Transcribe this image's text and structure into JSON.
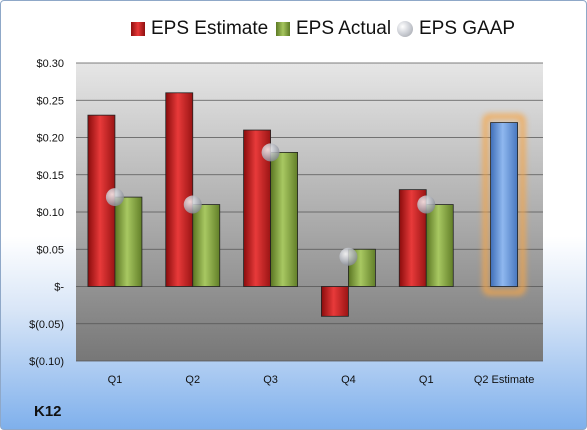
{
  "legend": {
    "estimate_label": "EPS Estimate",
    "actual_label": "EPS Actual",
    "gaap_label": "EPS GAAP"
  },
  "ticker": "K12",
  "colors": {
    "estimate": "#d42424",
    "actual": "#8db04a",
    "gaap": "#b8bcc4",
    "q2_estimate": "#6a9be0",
    "q2_glow": "#f5a64a"
  },
  "chart_data": {
    "type": "bar",
    "categories": [
      "Q1",
      "Q2",
      "Q3",
      "Q4",
      "Q1",
      "Q2 Estimate"
    ],
    "series": [
      {
        "name": "EPS Estimate",
        "values": [
          0.23,
          0.26,
          0.21,
          -0.04,
          0.13,
          0.22
        ]
      },
      {
        "name": "EPS Actual",
        "values": [
          0.12,
          0.11,
          0.18,
          0.05,
          0.11,
          null
        ]
      },
      {
        "name": "EPS GAAP",
        "values": [
          0.12,
          0.11,
          0.18,
          0.04,
          0.11,
          null
        ]
      }
    ],
    "ylim": [
      -0.1,
      0.3
    ],
    "yticks": [
      0.3,
      0.25,
      0.2,
      0.15,
      0.1,
      0.05,
      0.0,
      -0.05,
      -0.1
    ],
    "ytick_labels": [
      "$0.30",
      "$0.25",
      "$0.20",
      "$0.15",
      "$0.10",
      "$0.05",
      "$-",
      "$(0.05)",
      "$(0.10)"
    ],
    "grid": true,
    "legend_position": "top"
  }
}
